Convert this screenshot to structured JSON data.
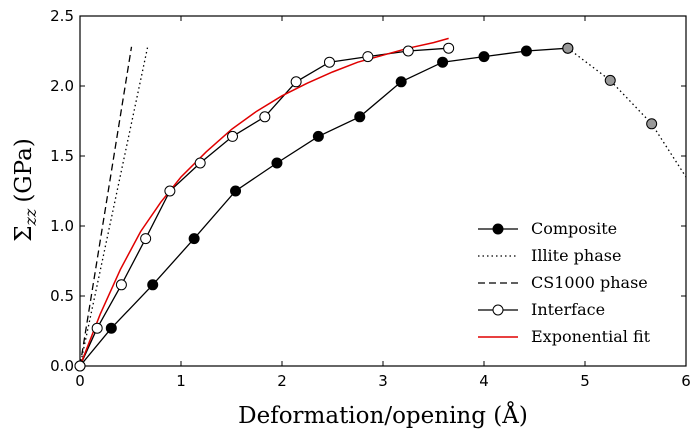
{
  "chart_data": {
    "type": "line",
    "xlabel": "Deformation/opening (Å)",
    "ylabel": "Σ",
    "ylabel_subscript": "zz",
    "ylabel_unit": "(GPa)",
    "xlim": [
      0,
      6
    ],
    "ylim": [
      0,
      2.5
    ],
    "xticks": [
      0,
      1,
      2,
      3,
      4,
      5,
      6
    ],
    "yticks": [
      0.0,
      0.5,
      1.0,
      1.5,
      2.0,
      2.5
    ],
    "xtick_labels": [
      "0",
      "1",
      "2",
      "3",
      "4",
      "5",
      "6"
    ],
    "ytick_labels": [
      "0.0",
      "0.5",
      "1.0",
      "1.5",
      "2.0",
      "2.5"
    ],
    "grid": false,
    "legend_position": "lower-right",
    "series": [
      {
        "name": "Composite",
        "style": "solid",
        "marker": "filled-circle",
        "color": "#000000",
        "x": [
          0.0,
          0.31,
          0.72,
          1.13,
          1.54,
          1.95,
          2.36,
          2.77,
          3.18,
          3.59,
          4.0,
          4.42,
          4.83
        ],
        "y": [
          0.0,
          0.27,
          0.58,
          0.91,
          1.25,
          1.45,
          1.64,
          1.78,
          2.03,
          2.17,
          2.21,
          2.25,
          2.27
        ]
      },
      {
        "name": "",
        "style": "dotted",
        "marker": "grey-circle",
        "color": "#000000",
        "marker_color": "#999999",
        "x": [
          4.83,
          5.25,
          5.66,
          6.0
        ],
        "y": [
          2.27,
          2.04,
          1.73,
          1.35
        ]
      },
      {
        "name": "Illite phase",
        "style": "dotted",
        "marker": "none",
        "color": "#000000",
        "x": [
          0.0,
          0.67
        ],
        "y": [
          0.0,
          2.28
        ]
      },
      {
        "name": "CS1000 phase",
        "style": "dashed",
        "marker": "none",
        "color": "#000000",
        "x": [
          0.0,
          0.51
        ],
        "y": [
          0.0,
          2.28
        ]
      },
      {
        "name": "Interface",
        "style": "solid",
        "marker": "open-circle",
        "color": "#000000",
        "x": [
          0.0,
          0.17,
          0.41,
          0.65,
          0.89,
          1.19,
          1.51,
          1.83,
          2.14,
          2.47,
          2.85,
          3.25,
          3.65
        ],
        "y": [
          0.0,
          0.27,
          0.58,
          0.91,
          1.25,
          1.45,
          1.64,
          1.78,
          2.03,
          2.17,
          2.21,
          2.25,
          2.27
        ]
      },
      {
        "name": "Exponential fit",
        "style": "solid",
        "marker": "none",
        "color": "#e00000",
        "x": [
          0.0,
          0.2,
          0.4,
          0.6,
          0.8,
          1.0,
          1.25,
          1.5,
          1.75,
          2.0,
          2.25,
          2.5,
          2.75,
          3.0,
          3.25,
          3.5,
          3.65
        ],
        "y": [
          0.0,
          0.37,
          0.69,
          0.96,
          1.17,
          1.35,
          1.53,
          1.69,
          1.82,
          1.93,
          2.02,
          2.1,
          2.17,
          2.22,
          2.27,
          2.31,
          2.34
        ]
      }
    ]
  }
}
